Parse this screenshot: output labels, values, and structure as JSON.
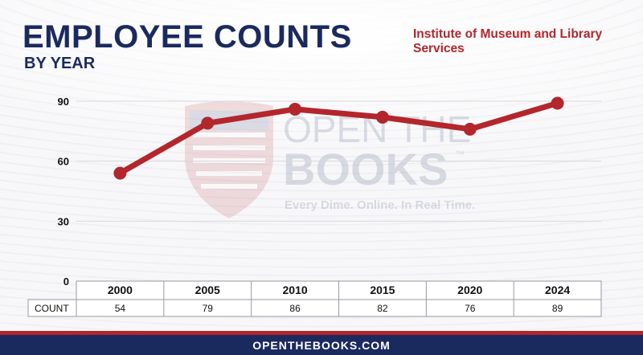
{
  "title": "EMPLOYEE COUNTS",
  "subtitle": "BY YEAR",
  "agency": "Institute of Museum and Library Services",
  "footer": "OPENTHEBOOKS.COM",
  "watermark": {
    "line1": "OPEN THE",
    "line2": "BOOKS",
    "trademark": "™",
    "tagline": "Every Dime. Online. In Real Time."
  },
  "table": {
    "row_label": "COUNT"
  },
  "colors": {
    "navy": "#1b2a5e",
    "red": "#b3262b",
    "grid": "#d9d9dd"
  },
  "chart_data": {
    "type": "line",
    "x": [
      "2000",
      "2005",
      "2010",
      "2015",
      "2020",
      "2024"
    ],
    "series": [
      {
        "values": [
          54,
          79,
          86,
          82,
          76,
          89
        ]
      }
    ],
    "yticks": [
      "0",
      "30",
      "60",
      "90"
    ],
    "ylim": [
      0,
      90
    ],
    "grid": true,
    "legend": "none"
  }
}
